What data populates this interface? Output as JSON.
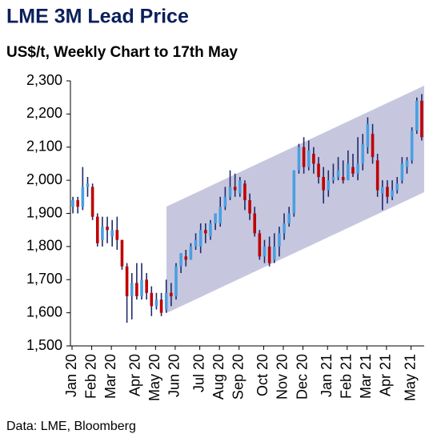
{
  "chart_data": {
    "type": "candlestick",
    "title": "LME 3M Lead Price",
    "subtitle": "US$/t, Weekly Chart to 17th May",
    "source": "Data: LME, Bloomberg",
    "categories": [
      "Jan 20",
      null,
      null,
      null,
      "Feb 20",
      null,
      null,
      null,
      "Mar 20",
      null,
      null,
      null,
      null,
      "Apr 20",
      null,
      null,
      null,
      "May 20",
      null,
      null,
      null,
      "Jun 20",
      null,
      null,
      null,
      null,
      "Jul 20",
      null,
      null,
      null,
      "Aug 20",
      null,
      null,
      null,
      "Sep 20",
      null,
      null,
      null,
      null,
      "Oct 20",
      null,
      null,
      null,
      "Nov 20",
      null,
      null,
      null,
      "Dec 20",
      null,
      null,
      null,
      null,
      "Jan 21",
      null,
      null,
      null,
      "Feb 21",
      null,
      null,
      null,
      "Mar 21",
      null,
      null,
      null,
      "Apr 21",
      null,
      null,
      null,
      null,
      "May 21",
      null,
      null
    ],
    "open": [
      1920,
      1940,
      1920,
      1980,
      1980,
      1890,
      1820,
      1860,
      1830,
      1850,
      1820,
      1740,
      1650,
      1690,
      1650,
      1700,
      1660,
      1620,
      1640,
      1610,
      1660,
      1650,
      1740,
      1770,
      1760,
      1800,
      1800,
      1850,
      1830,
      1870,
      1870,
      1920,
      1950,
      1980,
      1960,
      1990,
      1940,
      1900,
      1840,
      1770,
      1800,
      1760,
      1800,
      1840,
      1870,
      1900,
      2030,
      2100,
      2040,
      2080,
      2050,
      2010,
      1970,
      2000,
      2010,
      2010,
      2000,
      2040,
      2020,
      2050,
      2100,
      2140,
      2060,
      1960,
      1980,
      1950,
      1970,
      2000,
      2040,
      2060,
      2150,
      2240
    ],
    "high": [
      1950,
      1950,
      2040,
      2010,
      1990,
      1900,
      1890,
      1890,
      1880,
      1890,
      1820,
      1750,
      1720,
      1750,
      1750,
      1720,
      1680,
      1660,
      1660,
      1700,
      1690,
      1750,
      1780,
      1790,
      1810,
      1840,
      1870,
      1870,
      1880,
      1900,
      1950,
      1980,
      2030,
      2020,
      2010,
      2000,
      1960,
      1920,
      1850,
      1820,
      1830,
      1840,
      1860,
      1900,
      1920,
      2030,
      2110,
      2130,
      2120,
      2100,
      2070,
      2040,
      2030,
      2050,
      2070,
      2060,
      2090,
      2080,
      2130,
      2140,
      2190,
      2170,
      2080,
      2000,
      2000,
      2000,
      2010,
      2070,
      2070,
      2160,
      2250,
      2260
    ],
    "low": [
      1900,
      1900,
      1910,
      1950,
      1880,
      1800,
      1800,
      1810,
      1800,
      1790,
      1730,
      1570,
      1580,
      1640,
      1640,
      1640,
      1590,
      1610,
      1590,
      1600,
      1620,
      1640,
      1720,
      1740,
      1760,
      1790,
      1780,
      1810,
      1820,
      1850,
      1860,
      1910,
      1940,
      1950,
      1950,
      1910,
      1880,
      1830,
      1760,
      1750,
      1740,
      1750,
      1770,
      1820,
      1860,
      1890,
      2020,
      2020,
      2030,
      2020,
      1990,
      1930,
      1950,
      1990,
      2000,
      1990,
      2000,
      2010,
      2000,
      2030,
      2080,
      2050,
      1950,
      1910,
      1930,
      1940,
      1960,
      1990,
      2020,
      2050,
      2140,
      2120
    ],
    "close": [
      1940,
      1920,
      1980,
      1990,
      1890,
      1810,
      1860,
      1850,
      1850,
      1820,
      1740,
      1650,
      1690,
      1650,
      1700,
      1660,
      1620,
      1640,
      1600,
      1660,
      1650,
      1740,
      1780,
      1760,
      1800,
      1820,
      1850,
      1840,
      1870,
      1900,
      1920,
      1950,
      1980,
      1970,
      2000,
      1940,
      1900,
      1840,
      1770,
      1800,
      1750,
      1800,
      1840,
      1870,
      1900,
      2030,
      2100,
      2040,
      2090,
      2050,
      2010,
      1970,
      2000,
      2010,
      2030,
      2000,
      2050,
      2020,
      2050,
      2110,
      2170,
      2070,
      1970,
      1980,
      1950,
      1970,
      1990,
      2050,
      2060,
      2150,
      2240,
      2130
    ],
    "up_color": "#4b9fe1",
    "down_color": "#c00000",
    "wick_color": "#1f2a6b",
    "ylim": [
      1500,
      2300
    ],
    "yticks": [
      {
        "value": 1500,
        "label": "1,500"
      },
      {
        "value": 1600,
        "label": "1,600"
      },
      {
        "value": 1700,
        "label": "1,700"
      },
      {
        "value": 1800,
        "label": "1,800"
      },
      {
        "value": 1900,
        "label": "1,900"
      },
      {
        "value": 2000,
        "label": "2,000"
      },
      {
        "value": 2100,
        "label": "2,100"
      },
      {
        "value": 2200,
        "label": "2,200"
      },
      {
        "value": 2300,
        "label": "2,300"
      }
    ]
  }
}
